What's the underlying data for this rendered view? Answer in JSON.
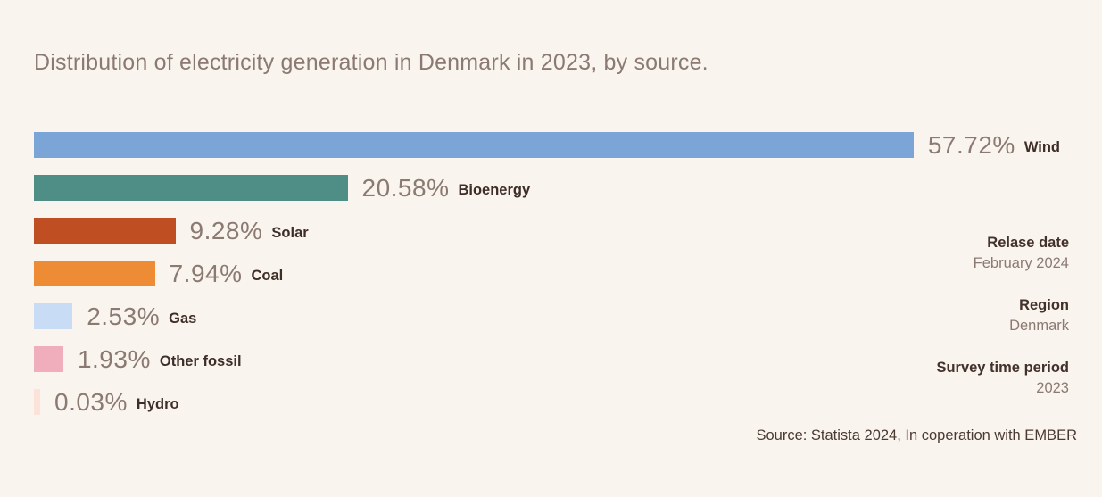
{
  "title": "Distribution of electricity generation in Denmark in 2023, by source.",
  "chart_data": {
    "type": "bar",
    "orientation": "horizontal",
    "title": "Distribution of electricity generation in Denmark in 2023, by source.",
    "categories": [
      "Wind",
      "Bioenergy",
      "Solar",
      "Coal",
      "Gas",
      "Other fossil",
      "Hydro"
    ],
    "values": [
      57.72,
      20.58,
      9.28,
      7.94,
      2.53,
      1.93,
      0.03
    ],
    "value_labels": [
      "57.72%",
      "20.58%",
      "9.28%",
      "7.94%",
      "2.53%",
      "1.93%",
      "0.03%"
    ],
    "bar_colors": [
      "#7AA5D6",
      "#4E8E87",
      "#BF4E22",
      "#EE8B35",
      "#C9DCF6",
      "#F0ADBB",
      "#FBE3DA"
    ],
    "xlabel": "",
    "ylabel": "",
    "xlim": [
      0,
      60
    ],
    "grid": false,
    "legend": "none",
    "value_label_position": "right-of-bar"
  },
  "meta_panel": {
    "items": [
      {
        "label": "Relase date",
        "value": "February 2024"
      },
      {
        "label": "Region",
        "value": "Denmark"
      },
      {
        "label": "Survey time period",
        "value": "2023"
      }
    ]
  },
  "source_line": "Source: Statista 2024, In coperation with EMBER",
  "colors": {
    "background": "#FAF4EF",
    "title_text": "#8B7A71",
    "value_text": "#8B7A71",
    "category_text": "#3E2E27",
    "meta_label_text": "#42322B",
    "meta_value_text": "#8B7A71",
    "source_text": "#4A3A32"
  }
}
